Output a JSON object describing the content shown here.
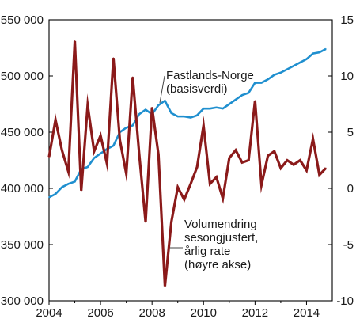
{
  "chart_data": {
    "type": "line",
    "title": "",
    "xlabel": "",
    "xlim": [
      2004,
      2015
    ],
    "x_ticks": [
      2004,
      2006,
      2008,
      2010,
      2012,
      2014
    ],
    "grid": false,
    "left_axis": {
      "label": "",
      "ylim": [
        300000,
        550000
      ],
      "ticks": [
        300000,
        350000,
        400000,
        450000,
        500000,
        550000
      ],
      "tick_labels": [
        "300 000",
        "350 000",
        "400 000",
        "450 000",
        "500 000",
        "550 000"
      ]
    },
    "right_axis": {
      "label": "",
      "ylim": [
        -10,
        15
      ],
      "ticks": [
        -10,
        -5,
        0,
        5,
        10,
        15
      ],
      "tick_labels": [
        "-10",
        "-5",
        "0",
        "5",
        "10",
        "15"
      ]
    },
    "series": [
      {
        "name": "Fastlands-Norge (basisverdi)",
        "axis": "left",
        "color": "#1f8fcf",
        "x": [
          2004.0,
          2004.25,
          2004.5,
          2004.75,
          2005.0,
          2005.25,
          2005.5,
          2005.75,
          2006.0,
          2006.25,
          2006.5,
          2006.75,
          2007.0,
          2007.25,
          2007.5,
          2007.75,
          2008.0,
          2008.25,
          2008.5,
          2008.75,
          2009.0,
          2009.25,
          2009.5,
          2009.75,
          2010.0,
          2010.25,
          2010.5,
          2010.75,
          2011.0,
          2011.25,
          2011.5,
          2011.75,
          2012.0,
          2012.25,
          2012.5,
          2012.75,
          2013.0,
          2013.25,
          2013.5,
          2013.75,
          2014.0,
          2014.25,
          2014.5,
          2014.75
        ],
        "values": [
          392000,
          395000,
          401000,
          404000,
          406000,
          417000,
          419000,
          427000,
          431000,
          435000,
          438000,
          450000,
          454000,
          456000,
          466000,
          470000,
          466000,
          474000,
          478000,
          467000,
          464000,
          464000,
          463000,
          465000,
          471000,
          471000,
          472000,
          471000,
          475000,
          479000,
          483000,
          485000,
          494000,
          494000,
          497000,
          501000,
          503000,
          506000,
          509000,
          512000,
          515000,
          520000,
          521000,
          524000
        ]
      },
      {
        "name": "Volumendring sesongjustert, årlig rate (høyre akse)",
        "axis": "right",
        "color": "#8b1a1a",
        "x": [
          2004.0,
          2004.25,
          2004.5,
          2004.75,
          2005.0,
          2005.25,
          2005.5,
          2005.75,
          2006.0,
          2006.25,
          2006.5,
          2006.75,
          2007.0,
          2007.25,
          2007.5,
          2007.75,
          2008.0,
          2008.25,
          2008.5,
          2008.75,
          2009.0,
          2009.25,
          2009.5,
          2009.75,
          2010.0,
          2010.25,
          2010.5,
          2010.75,
          2011.0,
          2011.25,
          2011.5,
          2011.75,
          2012.0,
          2012.25,
          2012.5,
          2012.75,
          2013.0,
          2013.25,
          2013.5,
          2013.75,
          2014.0,
          2014.25,
          2014.5,
          2014.75
        ],
        "values": [
          2.8,
          6.1,
          3.4,
          1.5,
          13.1,
          -0.2,
          7.4,
          3.3,
          4.7,
          2.2,
          11.6,
          4.3,
          1.3,
          9.9,
          3.1,
          -3.0,
          7.2,
          3.0,
          -8.7,
          -3.0,
          0.1,
          -1.0,
          0.4,
          1.9,
          5.6,
          0.4,
          1.0,
          -0.9,
          2.7,
          3.4,
          2.3,
          2.5,
          7.8,
          0.3,
          2.9,
          3.3,
          1.8,
          2.5,
          2.1,
          2.5,
          1.6,
          4.4,
          1.2,
          1.8
        ]
      }
    ],
    "annotations": [
      {
        "series": 0,
        "lines": [
          "Fastlands-Norge",
          "(basisverdi)"
        ]
      },
      {
        "series": 1,
        "lines": [
          "Volumendring",
          "sesongjustert,",
          "årlig rate",
          "(høyre akse)"
        ]
      }
    ]
  }
}
